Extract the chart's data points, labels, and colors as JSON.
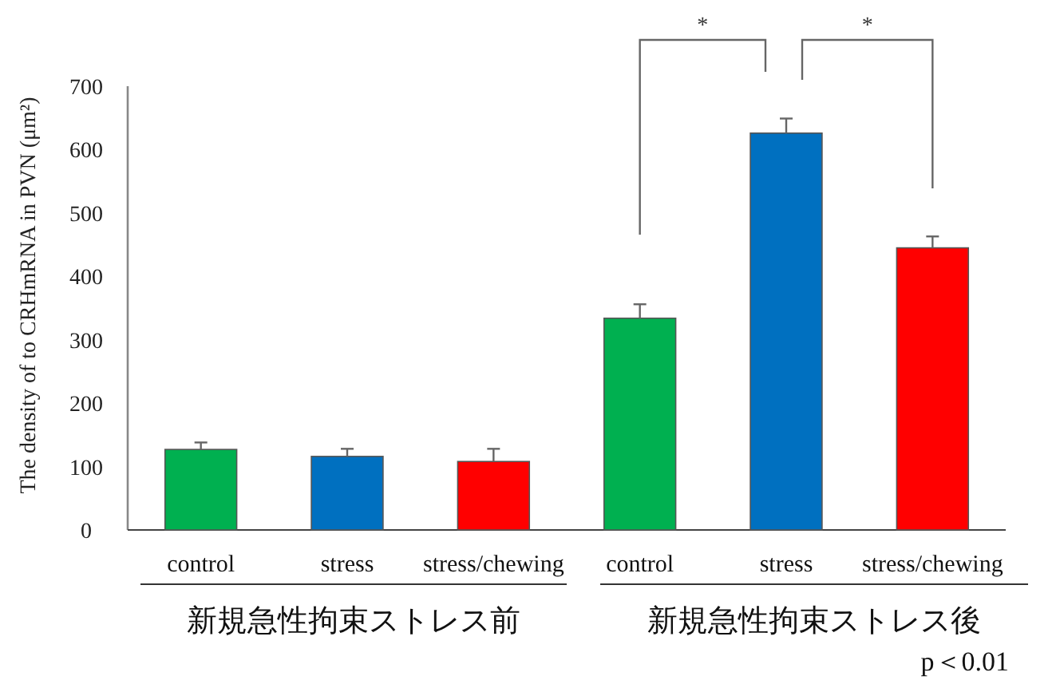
{
  "chart_data": {
    "type": "bar",
    "ylabel": "The density of to CRHmRNA in PVN (μm²)",
    "categories": [
      "control",
      "stress",
      "stress/chewing",
      "control",
      "stress",
      "stress/chewing"
    ],
    "values": [
      127,
      116,
      108,
      334,
      626,
      445
    ],
    "errors": [
      [
        127,
        138
      ],
      [
        116,
        128
      ],
      [
        108,
        128
      ],
      [
        334,
        356
      ],
      [
        626,
        649
      ],
      [
        445,
        463
      ]
    ],
    "colors": [
      "#00b050",
      "#0070c0",
      "#ff0000",
      "#00b050",
      "#0070c0",
      "#ff0000"
    ],
    "ylim": [
      0,
      700
    ],
    "yticks": [
      0,
      100,
      200,
      300,
      400,
      500,
      600,
      700
    ],
    "annotations": [
      "*",
      "*",
      "新規急性拘束ストレス前",
      "新規急性拘束ストレス後",
      "p＜0.01"
    ]
  }
}
